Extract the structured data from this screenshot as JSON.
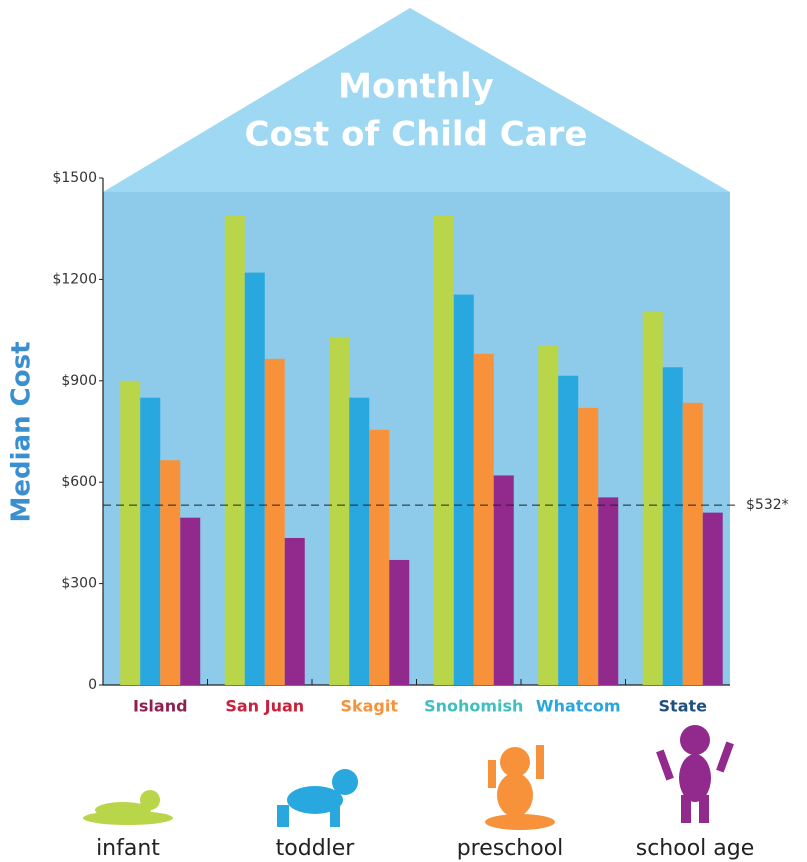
{
  "chart_data": {
    "type": "bar",
    "title_lines": [
      "Monthly",
      "Cost of Child Care"
    ],
    "ylabel": "Median Cost",
    "categories": [
      "Island",
      "San Juan",
      "Skagit",
      "Snohomish",
      "Whatcom",
      "State"
    ],
    "category_colors": [
      "#8e1f4f",
      "#c8203c",
      "#f7923a",
      "#3fbfbd",
      "#2aa6df",
      "#1f4f7d"
    ],
    "series": [
      {
        "name": "infant",
        "color": "#b9d54a",
        "values": [
          900,
          1390,
          1030,
          1390,
          1005,
          1105
        ]
      },
      {
        "name": "toddler",
        "color": "#29a8e0",
        "values": [
          850,
          1220,
          850,
          1155,
          915,
          940
        ]
      },
      {
        "name": "preschool",
        "color": "#f7923a",
        "values": [
          665,
          965,
          755,
          980,
          820,
          835
        ]
      },
      {
        "name": "school age",
        "color": "#92298d",
        "values": [
          495,
          435,
          370,
          620,
          555,
          510
        ]
      }
    ],
    "ylim": [
      0,
      1500
    ],
    "yticks": [
      0,
      {
        "value": 300,
        "label": "$300"
      },
      {
        "value": 600,
        "label": "$600"
      },
      {
        "value": 900,
        "label": "$900"
      },
      {
        "value": 1200,
        "label": "$1200"
      },
      {
        "value": 1500,
        "label": "$1500"
      }
    ],
    "reference_line": {
      "value": 532,
      "label": "$532*"
    }
  }
}
